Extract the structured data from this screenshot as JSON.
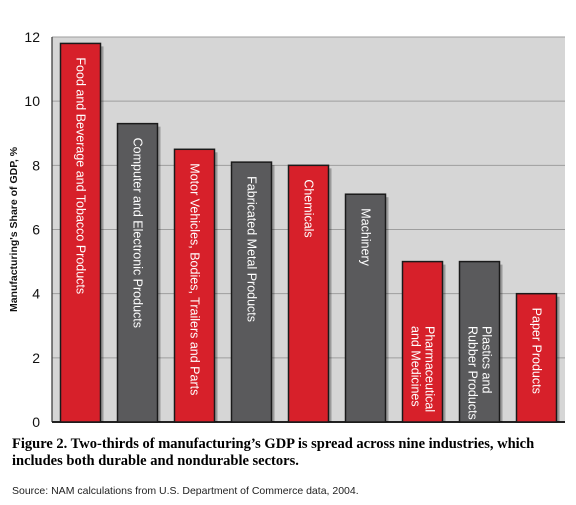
{
  "chart_data": {
    "type": "bar",
    "categories": [
      "Food and Beverage and Tobacco Products",
      "Computer and Electronic Products",
      "Motor Vehicles, Bodies, Trailers and Parts",
      "Fabricated Metal Products",
      "Chemicals",
      "Machinery",
      "Pharmaceutical and Medicines",
      "Plastics and Rubber Products",
      "Paper Products"
    ],
    "label_lines": [
      [
        "Food and Beverage and Tobacco Products"
      ],
      [
        "Computer and Electronic Products"
      ],
      [
        "Motor Vehicles, Bodies, Trailers and Parts"
      ],
      [
        "Fabricated Metal Products"
      ],
      [
        "Chemicals"
      ],
      [
        "Machinery"
      ],
      [
        "Pharmaceutical",
        "and Medicines"
      ],
      [
        "Plastics and",
        "Rubber Products"
      ],
      [
        "Paper Products"
      ]
    ],
    "values": [
      11.8,
      9.3,
      8.5,
      8.1,
      8.0,
      7.1,
      5.0,
      5.0,
      4.0
    ],
    "bar_colors": [
      "#d7202a",
      "#5a5a5c",
      "#d7202a",
      "#5a5a5c",
      "#d7202a",
      "#5a5a5c",
      "#d7202a",
      "#5a5a5c",
      "#d7202a"
    ],
    "ylabel": "Manufacturing's Share of GDP, %",
    "ylim": [
      0,
      12
    ],
    "yticks": [
      0,
      2,
      4,
      6,
      8,
      10,
      12
    ],
    "grid": true,
    "plot_background": "#d6d6d6"
  },
  "caption": "Figure 2. Two-thirds of manufacturing’s GDP is spread across nine industries, which includes both durable and nondurable sectors.",
  "source": "Source: NAM calculations from U.S. Department of Commerce data, 2004."
}
